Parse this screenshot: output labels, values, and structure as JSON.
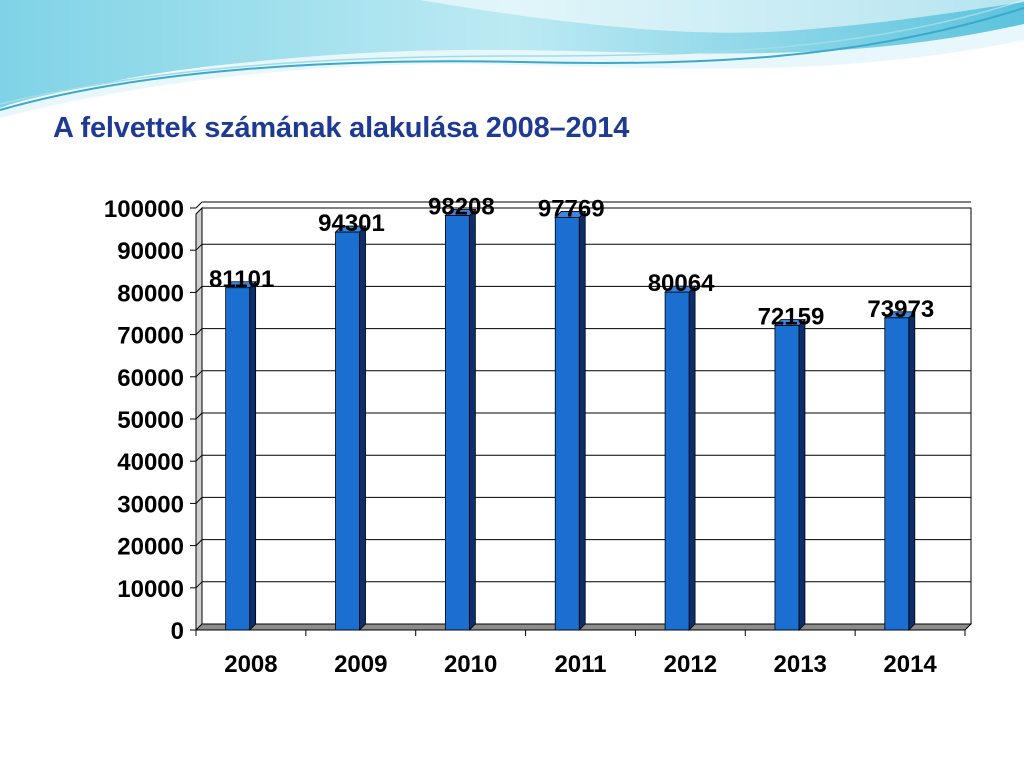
{
  "slide": {
    "title": "A felvettek számának alakulása 2008–2014"
  },
  "colors": {
    "bar_front": "#1a6fd0",
    "bar_side": "#0c2f6b",
    "title": "#1f3a93",
    "wave_light": "#bfe9f2",
    "wave_mid": "#6fcbe0",
    "wave_dark": "#2ea6c9"
  },
  "chart_data": {
    "type": "bar",
    "categories": [
      "2008",
      "2009",
      "2010",
      "2011",
      "2012",
      "2013",
      "2014"
    ],
    "values": [
      81101,
      94301,
      98208,
      97769,
      80064,
      72159,
      73973
    ],
    "data_labels": [
      "81101",
      "94301",
      "98208",
      "97769",
      "80064",
      "72159",
      "73973"
    ],
    "yticks": [
      "0",
      "10000",
      "20000",
      "30000",
      "40000",
      "50000",
      "60000",
      "70000",
      "80000",
      "90000",
      "100000"
    ],
    "ylim": [
      0,
      100000
    ],
    "grid": true,
    "legend": "none",
    "style": "3d"
  }
}
